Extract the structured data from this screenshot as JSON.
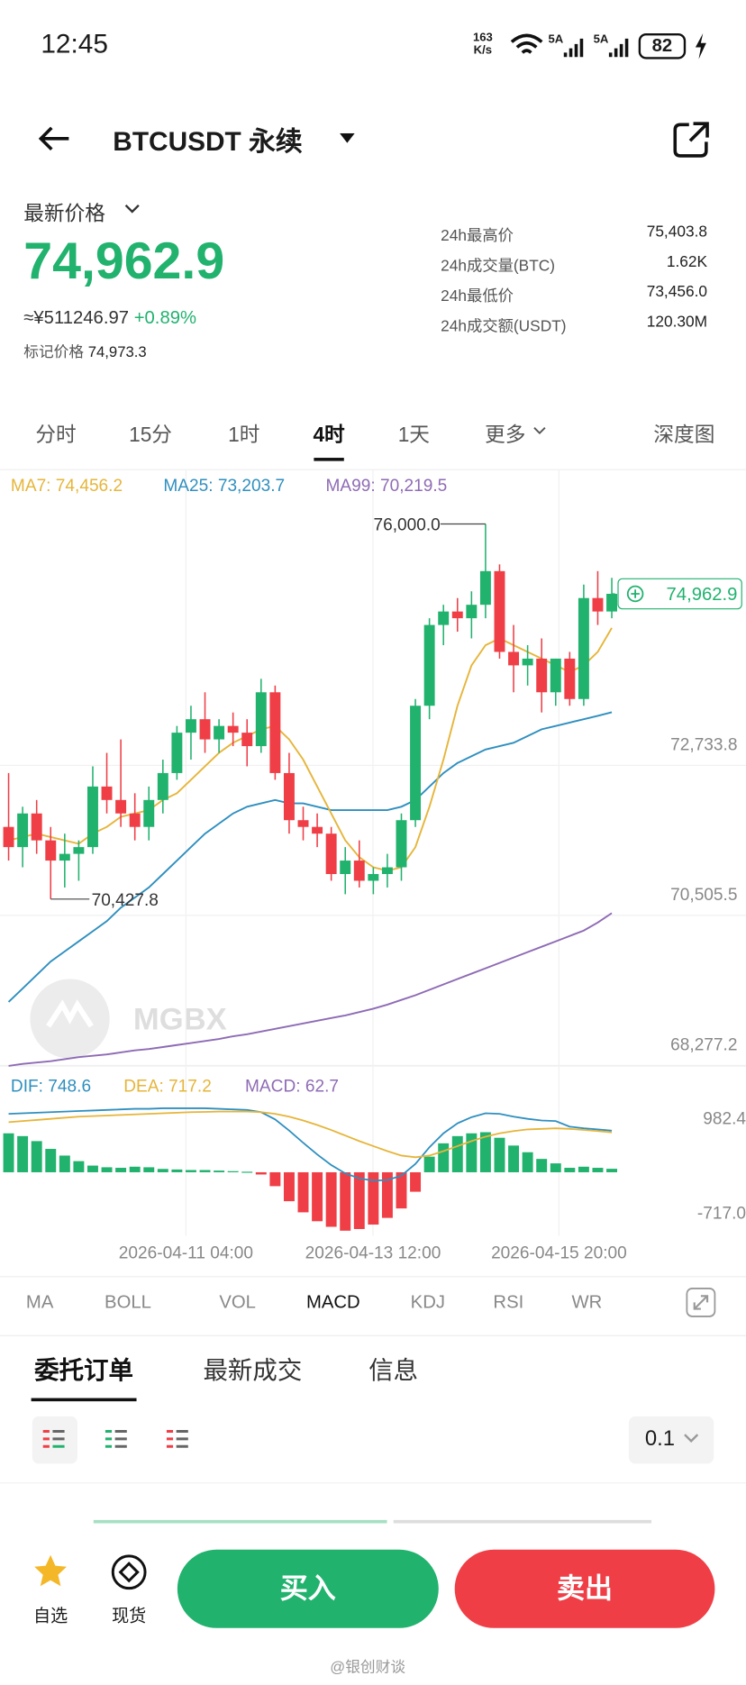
{
  "status_bar": {
    "time": "12:45",
    "net_speed": "163",
    "net_unit": "K/s",
    "sim1": "5A",
    "sim2": "5A",
    "battery": "82"
  },
  "header": {
    "symbol": "BTCUSDT 永续"
  },
  "ticker": {
    "price_label": "最新价格",
    "last_price": "74,962.9",
    "cny_price": "≈¥511246.97",
    "change": "+0.89%",
    "mark_label": "标记价格",
    "mark_price": "74,973.3",
    "stats": [
      [
        "24h最高价",
        "75,403.8"
      ],
      [
        "24h成交量(BTC)",
        "1.62K"
      ],
      [
        "24h最低价",
        "73,456.0"
      ],
      [
        "24h成交额(USDT)",
        "120.30M"
      ]
    ]
  },
  "timeframes": {
    "tabs": [
      "分时",
      "15分",
      "1时",
      "4时",
      "1天",
      "更多"
    ],
    "active": 3,
    "depth": "深度图"
  },
  "kline": {
    "ma_legend": [
      "MA7: 74,456.2",
      "MA25: 73,203.7",
      "MA99: 70,219.5"
    ],
    "ma_colors": [
      "#e6b53a",
      "#2f8fbf",
      "#8e6bb5"
    ],
    "up_color": "#21b26e",
    "down_color": "#ef3e46",
    "ylim": [
      67980,
      76760
    ],
    "yticks": [
      {
        "value": 72733.8,
        "label": "72,733.8"
      },
      {
        "value": 70505.5,
        "label": "70,505.5"
      },
      {
        "value": 68277.2,
        "label": "68,277.2"
      }
    ],
    "high_label": {
      "value": 76000,
      "label": "76,000.0"
    },
    "low_label": {
      "value": 70427.8,
      "label": "70,427.8"
    },
    "last_label": "74,962.9",
    "watermark": "MGBX",
    "x_labels": [
      "2026-04-11 04:00",
      "2026-04-13 12:00",
      "2026-04-15 20:00"
    ],
    "candles": [
      [
        71500,
        72300,
        71000,
        71200
      ],
      [
        71200,
        71800,
        70900,
        71700
      ],
      [
        71700,
        71900,
        71100,
        71300
      ],
      [
        71300,
        71500,
        70427.8,
        71000
      ],
      [
        71000,
        71400,
        70600,
        71100
      ],
      [
        71100,
        71300,
        70700,
        71200
      ],
      [
        71200,
        72400,
        71100,
        72100
      ],
      [
        72100,
        72600,
        71700,
        71900
      ],
      [
        71900,
        72800,
        71500,
        71700
      ],
      [
        71700,
        72000,
        71300,
        71500
      ],
      [
        71500,
        72100,
        71300,
        71900
      ],
      [
        71900,
        72500,
        71700,
        72300
      ],
      [
        72300,
        73000,
        72200,
        72900
      ],
      [
        72900,
        73300,
        72500,
        73100
      ],
      [
        73100,
        73500,
        72600,
        72800
      ],
      [
        72800,
        73100,
        72600,
        73000
      ],
      [
        73000,
        73200,
        72700,
        72900
      ],
      [
        72900,
        73100,
        72400,
        72700
      ],
      [
        72700,
        73700,
        72600,
        73500
      ],
      [
        73500,
        73600,
        72200,
        72300
      ],
      [
        72300,
        72600,
        71400,
        71600
      ],
      [
        71600,
        71800,
        71300,
        71500
      ],
      [
        71500,
        71700,
        71200,
        71400
      ],
      [
        71400,
        71500,
        70700,
        70800
      ],
      [
        70800,
        71200,
        70500,
        71000
      ],
      [
        71000,
        71300,
        70600,
        70700
      ],
      [
        70700,
        70900,
        70500,
        70800
      ],
      [
        70800,
        71100,
        70600,
        70900
      ],
      [
        70900,
        71700,
        70700,
        71600
      ],
      [
        71600,
        73400,
        71500,
        73300
      ],
      [
        73300,
        74600,
        73100,
        74500
      ],
      [
        74500,
        74800,
        74200,
        74700
      ],
      [
        74700,
        74900,
        74400,
        74600
      ],
      [
        74600,
        75000,
        74300,
        74800
      ],
      [
        74800,
        76000,
        74600,
        75300
      ],
      [
        75300,
        75400,
        74000,
        74100
      ],
      [
        74100,
        74500,
        73500,
        73900
      ],
      [
        73900,
        74200,
        73600,
        74000
      ],
      [
        74000,
        74300,
        73200,
        73500
      ],
      [
        73500,
        74000,
        73300,
        74000
      ],
      [
        74000,
        74100,
        73300,
        73400
      ],
      [
        73400,
        75100,
        73300,
        74900
      ],
      [
        74900,
        75300,
        74500,
        74700
      ],
      [
        74700,
        75200,
        74600,
        74962.9
      ]
    ],
    "ma7": [
      71300,
      71350,
      71400,
      71350,
      71300,
      71250,
      71400,
      71500,
      71650,
      71700,
      71750,
      71900,
      72000,
      72200,
      72400,
      72600,
      72750,
      72850,
      72950,
      73000,
      72800,
      72500,
      72100,
      71700,
      71300,
      71050,
      70900,
      70850,
      70900,
      71200,
      71800,
      72500,
      73300,
      73900,
      74200,
      74300,
      74200,
      74100,
      74000,
      73900,
      73800,
      73900,
      74100,
      74456.2
    ],
    "ma25": [
      68900,
      69100,
      69300,
      69500,
      69650,
      69800,
      69950,
      70100,
      70300,
      70450,
      70600,
      70800,
      71000,
      71200,
      71400,
      71550,
      71700,
      71800,
      71850,
      71900,
      71850,
      71850,
      71800,
      71750,
      71750,
      71750,
      71750,
      71750,
      71800,
      71900,
      72100,
      72300,
      72450,
      72550,
      72650,
      72700,
      72750,
      72850,
      72950,
      73000,
      73050,
      73100,
      73150,
      73203.7
    ],
    "ma99": [
      67950,
      67980,
      68000,
      68020,
      68050,
      68080,
      68100,
      68120,
      68150,
      68180,
      68200,
      68230,
      68260,
      68290,
      68320,
      68350,
      68390,
      68420,
      68460,
      68500,
      68540,
      68580,
      68620,
      68660,
      68700,
      68750,
      68800,
      68860,
      68930,
      69000,
      69080,
      69160,
      69240,
      69320,
      69400,
      69480,
      69560,
      69640,
      69720,
      69800,
      69880,
      69960,
      70080,
      70219.5
    ]
  },
  "macd": {
    "legend": [
      "DIF: 748.6",
      "DEA: 717.2",
      "MACD: 62.7"
    ],
    "colors": [
      "#2f8fbf",
      "#e6b53a",
      "#8e6bb5"
    ],
    "ylim": [
      -1141.8,
      1175.5
    ],
    "yticks": [
      982.4,
      {
        "value": -717,
        "label": "-717.0"
      }
    ],
    "hist": [
      700,
      650,
      560,
      420,
      300,
      200,
      120,
      90,
      80,
      100,
      90,
      60,
      50,
      40,
      40,
      30,
      20,
      10,
      -40,
      -250,
      -520,
      -720,
      -880,
      -980,
      -1050,
      -1020,
      -940,
      -820,
      -650,
      -350,
      280,
      520,
      650,
      700,
      720,
      620,
      480,
      360,
      240,
      160,
      80,
      100,
      80,
      62.7
    ],
    "dif": [
      1050,
      1060,
      1070,
      1080,
      1090,
      1100,
      1110,
      1120,
      1130,
      1140,
      1140,
      1150,
      1150,
      1150,
      1150,
      1140,
      1130,
      1120,
      1080,
      950,
      750,
      530,
      320,
      130,
      -20,
      -110,
      -150,
      -140,
      -60,
      150,
      450,
      700,
      880,
      990,
      1060,
      1050,
      1000,
      960,
      930,
      920,
      820,
      790,
      770,
      748.6
    ],
    "dea": [
      900,
      920,
      940,
      960,
      980,
      1000,
      1010,
      1020,
      1030,
      1040,
      1050,
      1060,
      1070,
      1080,
      1085,
      1090,
      1090,
      1090,
      1080,
      1050,
      1000,
      930,
      850,
      760,
      660,
      560,
      470,
      380,
      300,
      270,
      300,
      380,
      470,
      560,
      640,
      700,
      740,
      770,
      780,
      790,
      780,
      760,
      740,
      717.2
    ]
  },
  "indicators": {
    "tabs": [
      "MA",
      "BOLL",
      "VOL",
      "MACD",
      "KDJ",
      "RSI",
      "WR"
    ],
    "active": 3
  },
  "orders": {
    "tabs": [
      "委托订单",
      "最新成交",
      "信息"
    ],
    "active": 0,
    "step": "0.1"
  },
  "footer": {
    "favorite": "自选",
    "spot": "现货",
    "buy": "买入",
    "sell": "卖出",
    "watermark": "@银创财谈"
  }
}
